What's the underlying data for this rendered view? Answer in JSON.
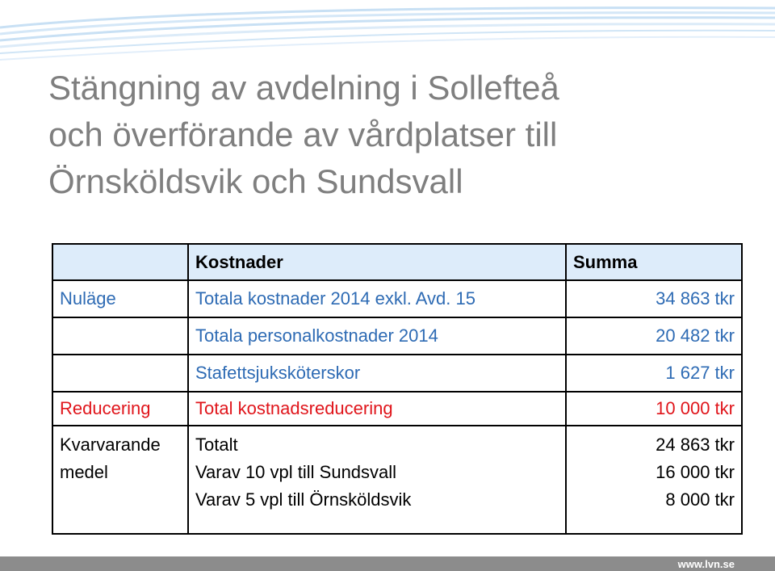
{
  "title_lines": [
    "Stängning av avdelning i Sollefteå",
    "och överförande av vårdplatser till",
    "Örnsköldsvik och Sundsvall"
  ],
  "table": {
    "headers": [
      "",
      "Kostnader",
      "Summa"
    ],
    "rows": [
      {
        "label": "Nuläge",
        "item": "Totala kostnader 2014 exkl. Avd. 15",
        "amount": "34 863 tkr"
      },
      {
        "label": "",
        "item": "Totala personalkostnader 2014",
        "amount": "20 482 tkr"
      },
      {
        "label": "",
        "item": "Stafettsjuksköterskor",
        "amount": "1 627 tkr"
      },
      {
        "label": "Reducering",
        "item": "Total kostnadsreducering",
        "amount": "10 000 tkr"
      }
    ],
    "remaining": {
      "label_lines": [
        "Kvarvarande",
        "medel"
      ],
      "items": [
        "Totalt",
        "Varav 10 vpl till Sundsvall",
        "Varav 5 vpl till Örnsköldsvik"
      ],
      "amounts": [
        "24 863 tkr",
        "16 000 tkr",
        "8 000 tkr"
      ]
    }
  },
  "footer": {
    "url": "www.lvn.se"
  },
  "colors": {
    "title": "#7f7f7f",
    "header_bg": "#ddecfa",
    "blue_text": "#2e6bb4",
    "red_text": "#e0151b",
    "footer_bg": "#8c8c8c"
  }
}
